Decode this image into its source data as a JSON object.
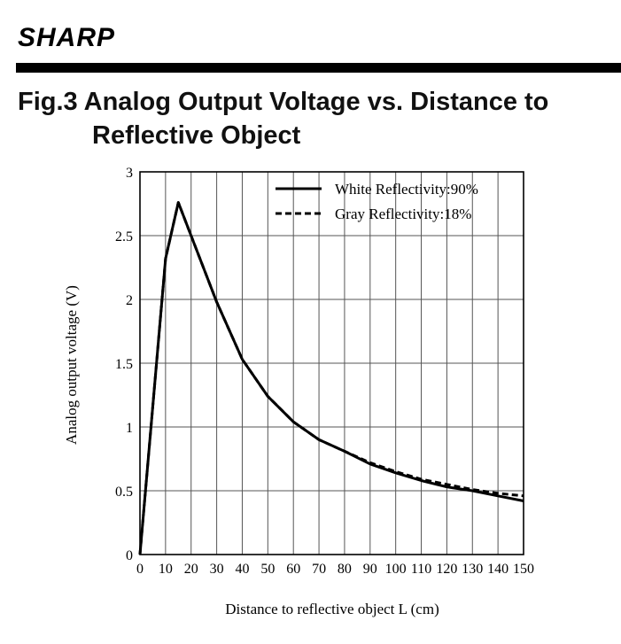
{
  "brand": {
    "logo_text": "SHARP"
  },
  "figure": {
    "title_line1": "Fig.3 Analog Output Voltage vs. Distance to",
    "title_line2": "Reflective Object"
  },
  "chart_data": {
    "type": "line",
    "title": "Fig.3 Analog Output Voltage vs. Distance to Reflective Object",
    "xlabel": "Distance to reflective object L (cm)",
    "ylabel": "Analog output voltage (V)",
    "xlim": [
      0,
      150
    ],
    "ylim": [
      0,
      3
    ],
    "xticks": [
      0,
      10,
      20,
      30,
      40,
      50,
      60,
      70,
      80,
      90,
      100,
      110,
      120,
      130,
      140,
      150
    ],
    "xtick_labels": [
      "0",
      "10",
      "20",
      "30",
      "40",
      "50",
      "60",
      "70",
      "80",
      "90",
      "100",
      "110",
      "120",
      "130",
      "140",
      "150"
    ],
    "yticks": [
      0,
      0.5,
      1,
      1.5,
      2,
      2.5,
      3
    ],
    "ytick_labels": [
      "0",
      "0.5",
      "1",
      "1.5",
      "2",
      "2.5",
      "3"
    ],
    "grid": true,
    "legend_position": "top-right",
    "series": [
      {
        "name": "White Reflectivity:90%",
        "style": "solid",
        "color": "#000000",
        "x": [
          0,
          10,
          15,
          20,
          30,
          40,
          50,
          60,
          70,
          80,
          90,
          100,
          110,
          120,
          130,
          140,
          150
        ],
        "y": [
          0,
          2.32,
          2.76,
          2.5,
          1.98,
          1.53,
          1.24,
          1.04,
          0.9,
          0.81,
          0.71,
          0.64,
          0.58,
          0.53,
          0.5,
          0.46,
          0.42
        ]
      },
      {
        "name": "Gray Reflectivity:18%",
        "style": "dashed",
        "color": "#000000",
        "x": [
          0,
          10,
          15,
          20,
          30,
          40,
          50,
          60,
          70,
          80,
          90,
          100,
          110,
          120,
          130,
          140,
          150
        ],
        "y": [
          0,
          2.32,
          2.76,
          2.5,
          1.98,
          1.53,
          1.24,
          1.04,
          0.9,
          0.81,
          0.72,
          0.65,
          0.59,
          0.55,
          0.51,
          0.48,
          0.46
        ]
      }
    ]
  }
}
